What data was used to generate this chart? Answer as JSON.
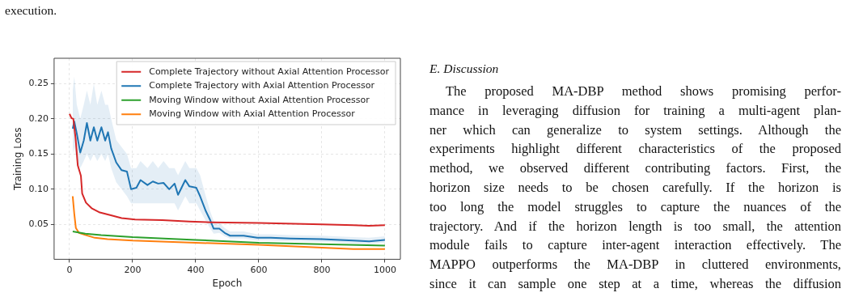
{
  "chart_data": {
    "type": "line",
    "xlabel": "Epoch",
    "ylabel": "Training Loss",
    "xlim": [
      -49,
      1049
    ],
    "ylim": [
      0.0005,
      0.286
    ],
    "xticks": [
      0,
      200,
      400,
      600,
      800,
      1000
    ],
    "yticks": [
      0.05,
      {
        "value": 0.1,
        "label": "0.10"
      },
      0.15,
      {
        "value": 0.2,
        "label": "0.20"
      },
      0.25
    ],
    "grid": true,
    "legend": "top right",
    "line_style": "solid",
    "marker": "none",
    "series": [
      {
        "name": "Complete Trajectory without Axial Attention Processor",
        "color": "#d62728",
        "x": [
          0,
          6,
          12,
          19,
          26,
          36,
          40,
          52,
          70,
          96,
          131,
          165,
          208,
          294,
          380,
          449,
          600,
          800,
          900,
          950,
          1000
        ],
        "values": [
          0.207,
          0.201,
          0.2,
          0.173,
          0.134,
          0.119,
          0.094,
          0.081,
          0.073,
          0.067,
          0.063,
          0.059,
          0.057,
          0.056,
          0.054,
          0.053,
          0.052,
          0.05,
          0.049,
          0.048,
          0.049
        ]
      },
      {
        "name": "Complete Trajectory with Axial Attention Processor",
        "color": "#1f77b4",
        "x": [
          10,
          15,
          23,
          34,
          45,
          55,
          66,
          77,
          88,
          101,
          113,
          122,
          132,
          148,
          165,
          182,
          195,
          212,
          225,
          247,
          264,
          281,
          298,
          316,
          333,
          344,
          367,
          380,
          402,
          414,
          432,
          445,
          457,
          475,
          492,
          509,
          552,
          595,
          638,
          700,
          800,
          900,
          950,
          1000
        ],
        "values": [
          0.186,
          0.196,
          0.179,
          0.152,
          0.169,
          0.194,
          0.169,
          0.188,
          0.169,
          0.188,
          0.169,
          0.181,
          0.158,
          0.138,
          0.127,
          0.125,
          0.1,
          0.102,
          0.113,
          0.106,
          0.111,
          0.108,
          0.109,
          0.1,
          0.108,
          0.092,
          0.113,
          0.104,
          0.102,
          0.09,
          0.069,
          0.057,
          0.044,
          0.044,
          0.038,
          0.034,
          0.034,
          0.031,
          0.031,
          0.03,
          0.029,
          0.027,
          0.026,
          0.028
        ],
        "lower": [
          0.15,
          0.16,
          0.14,
          0.13,
          0.14,
          0.15,
          0.14,
          0.15,
          0.14,
          0.15,
          0.14,
          0.15,
          0.13,
          0.11,
          0.1,
          0.09,
          0.08,
          0.08,
          0.08,
          0.08,
          0.08,
          0.08,
          0.08,
          0.08,
          0.08,
          0.07,
          0.09,
          0.08,
          0.08,
          0.07,
          0.055,
          0.045,
          0.037,
          0.038,
          0.033,
          0.03,
          0.03,
          0.027,
          0.027,
          0.026,
          0.025,
          0.023,
          0.022,
          0.024
        ],
        "upper": [
          0.24,
          0.26,
          0.22,
          0.2,
          0.22,
          0.24,
          0.22,
          0.25,
          0.22,
          0.24,
          0.22,
          0.22,
          0.2,
          0.17,
          0.16,
          0.15,
          0.13,
          0.13,
          0.14,
          0.13,
          0.14,
          0.13,
          0.14,
          0.13,
          0.13,
          0.12,
          0.14,
          0.13,
          0.13,
          0.12,
          0.09,
          0.07,
          0.055,
          0.052,
          0.045,
          0.04,
          0.04,
          0.036,
          0.036,
          0.035,
          0.034,
          0.032,
          0.031,
          0.033
        ]
      },
      {
        "name": "Moving Window without Axial Attention Processor",
        "color": "#2ca02c",
        "x": [
          10,
          50,
          100,
          200,
          400,
          600,
          800,
          1000
        ],
        "values": [
          0.04,
          0.037,
          0.035,
          0.032,
          0.028,
          0.024,
          0.022,
          0.02
        ]
      },
      {
        "name": "Moving Window with Axial Attention Processor",
        "color": "#ff7f0e",
        "x": [
          10,
          15,
          20,
          30,
          50,
          80,
          120,
          200,
          400,
          600,
          800,
          900,
          1000
        ],
        "values": [
          0.09,
          0.065,
          0.045,
          0.038,
          0.035,
          0.031,
          0.029,
          0.027,
          0.024,
          0.021,
          0.017,
          0.015,
          0.015
        ]
      }
    ],
    "annotations": [
      "execution.",
      "E. Discussion",
      "The proposed MA-DBP method shows promising perfor-",
      "mance in leveraging diffusion for training a multi-agent plan-",
      "ner which can generalize to system settings. Although the",
      "experiments highlight different characteristics of the proposed",
      "method, we observed different contributing factors. First, the",
      "horizon size needs to be chosen carefully. If the horizon is",
      "too long the model struggles to capture the nuances of the",
      "trajectory. And if the horizon length is too small, the attention",
      "module fails to capture inter-agent interaction effectively. The",
      "MAPPO outperforms the MA-DBP in cluttered environments,",
      "since it can sample one step at a time, whereas the diffusion"
    ]
  }
}
